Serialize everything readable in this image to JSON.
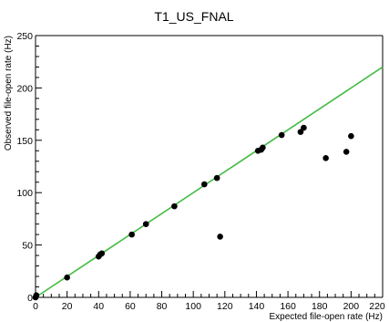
{
  "chart_data": {
    "type": "scatter",
    "title": "T1_US_FNAL",
    "xlabel": "Expected file-open rate (Hz)",
    "ylabel": "Observed file-open rate (Hz)",
    "xlim": [
      0,
      220
    ],
    "ylim": [
      0,
      250
    ],
    "x_ticks": [
      "0",
      "20",
      "40",
      "60",
      "80",
      "100",
      "120",
      "140",
      "160",
      "180",
      "200",
      "220"
    ],
    "y_ticks": [
      "0",
      "50",
      "100",
      "150",
      "200",
      "250"
    ],
    "grid": false,
    "points": [
      {
        "x": 0,
        "y": 0
      },
      {
        "x": 0.5,
        "y": 2
      },
      {
        "x": 20,
        "y": 19
      },
      {
        "x": 40,
        "y": 39
      },
      {
        "x": 41,
        "y": 41
      },
      {
        "x": 42,
        "y": 42
      },
      {
        "x": 61,
        "y": 60
      },
      {
        "x": 70,
        "y": 70
      },
      {
        "x": 88,
        "y": 87
      },
      {
        "x": 107,
        "y": 108
      },
      {
        "x": 115,
        "y": 114
      },
      {
        "x": 117,
        "y": 58
      },
      {
        "x": 141,
        "y": 140
      },
      {
        "x": 143,
        "y": 141
      },
      {
        "x": 144,
        "y": 143
      },
      {
        "x": 156,
        "y": 155
      },
      {
        "x": 168,
        "y": 158
      },
      {
        "x": 170,
        "y": 162
      },
      {
        "x": 184,
        "y": 133
      },
      {
        "x": 197,
        "y": 139
      },
      {
        "x": 200,
        "y": 154
      }
    ],
    "reference_line": {
      "x": [
        0,
        220
      ],
      "y": [
        0,
        220
      ],
      "color": "#44bb44"
    },
    "marker_color": "#000000"
  }
}
